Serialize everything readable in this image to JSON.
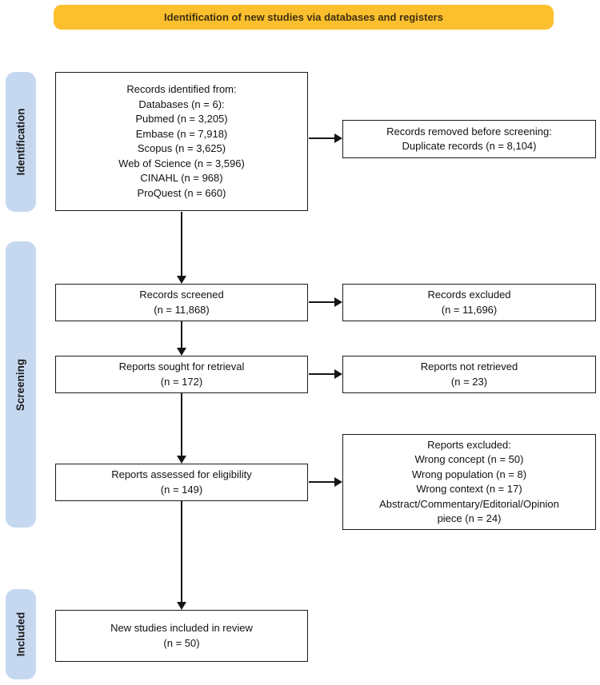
{
  "banner": {
    "label": "Identification of new studies via databases and registers"
  },
  "stages": {
    "identification": "Identification",
    "screening": "Screening",
    "included": "Included"
  },
  "boxes": {
    "records_identified": {
      "lines": [
        "Records identified from:",
        "Databases (n = 6):",
        "Pubmed (n = 3,205)",
        "Embase (n = 7,918)",
        "Scopus (n = 3,625)",
        "Web of Science (n = 3,596)",
        "CINAHL (n = 968)",
        "ProQuest (n = 660)"
      ]
    },
    "records_removed": {
      "lines": [
        "Records removed before screening:",
        "Duplicate records (n = 8,104)"
      ]
    },
    "records_screened": {
      "lines": [
        "Records screened",
        "(n = 11,868)"
      ]
    },
    "records_excluded": {
      "lines": [
        "Records excluded",
        "(n = 11,696)"
      ]
    },
    "reports_sought": {
      "lines": [
        "Reports sought for retrieval",
        "(n = 172)"
      ]
    },
    "reports_not_retrieved": {
      "lines": [
        "Reports not retrieved",
        "(n = 23)"
      ]
    },
    "reports_assessed": {
      "lines": [
        "Reports assessed for eligibility",
        "(n = 149)"
      ]
    },
    "reports_excluded": {
      "lines": [
        "Reports excluded:",
        "Wrong concept (n = 50)",
        "Wrong population (n = 8)",
        "Wrong context (n = 17)",
        "Abstract/Commentary/Editorial/Opinion",
        "piece (n = 24)"
      ]
    },
    "new_studies_included": {
      "lines": [
        "New studies included in review",
        "(n = 50)"
      ]
    }
  },
  "colors": {
    "banner_bg": "#FCBF2D",
    "banner_text": "#3E3212",
    "stage_bg": "#C5D8F0",
    "box_border": "#1B1B1B",
    "arrow": "#151515"
  }
}
